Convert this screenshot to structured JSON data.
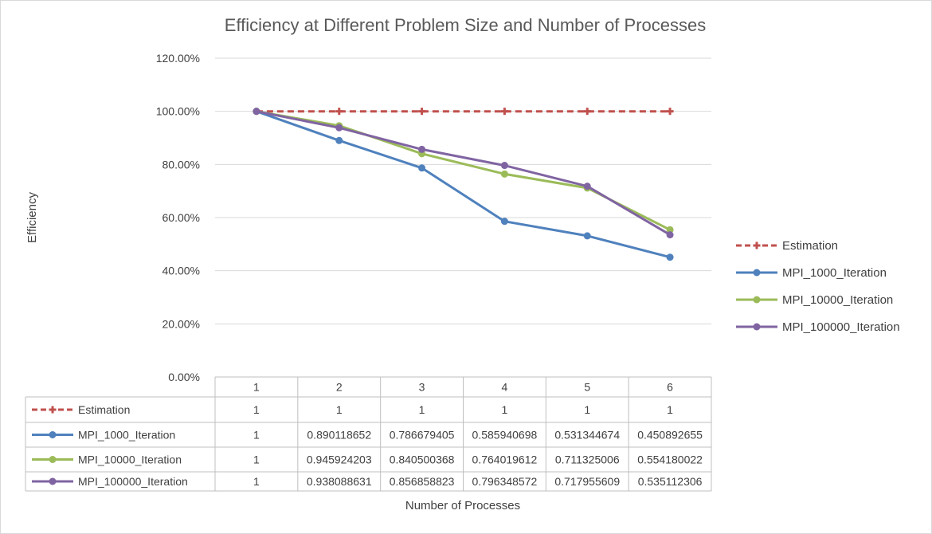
{
  "chart_data": {
    "type": "line",
    "title": "Efficiency at Different Problem Size and Number of Processes",
    "xlabel": "Number of Processes",
    "ylabel": "Efficiency",
    "ylim": [
      0,
      1.2
    ],
    "yticks": [
      0,
      0.2,
      0.4,
      0.6,
      0.8,
      1.0,
      1.2
    ],
    "ytick_labels": [
      "0.00%",
      "20.00%",
      "40.00%",
      "60.00%",
      "80.00%",
      "100.00%",
      "120.00%"
    ],
    "categories": [
      "1",
      "2",
      "3",
      "4",
      "5",
      "6"
    ],
    "grid": true,
    "legend_position": "right",
    "data_table": true,
    "series": [
      {
        "name": "Estimation",
        "color": "#c0504d",
        "style": "dashed",
        "marker": "plus",
        "values": [
          1,
          1,
          1,
          1,
          1,
          1
        ],
        "labels": [
          "1",
          "1",
          "1",
          "1",
          "1",
          "1"
        ]
      },
      {
        "name": "MPI_1000_Iteration",
        "color": "#4f81bd",
        "style": "solid",
        "marker": "circle",
        "values": [
          1,
          0.890118652,
          0.786679405,
          0.585940698,
          0.531344674,
          0.450892655
        ],
        "labels": [
          "1",
          "0.890118652",
          "0.786679405",
          "0.585940698",
          "0.531344674",
          "0.450892655"
        ]
      },
      {
        "name": "MPI_10000_Iteration",
        "color": "#9bbb59",
        "style": "solid",
        "marker": "circle",
        "values": [
          1,
          0.945924203,
          0.840500368,
          0.764019612,
          0.711325006,
          0.554180022
        ],
        "labels": [
          "1",
          "0.945924203",
          "0.840500368",
          "0.764019612",
          "0.711325006",
          "0.554180022"
        ]
      },
      {
        "name": "MPI_100000_Iteration",
        "color": "#8064a2",
        "style": "solid",
        "marker": "circle",
        "values": [
          1,
          0.938088631,
          0.856858823,
          0.796348572,
          0.717955609,
          0.535112306
        ],
        "labels": [
          "1",
          "0.938088631",
          "0.856858823",
          "0.796348572",
          "0.717955609",
          "0.535112306"
        ]
      }
    ]
  }
}
